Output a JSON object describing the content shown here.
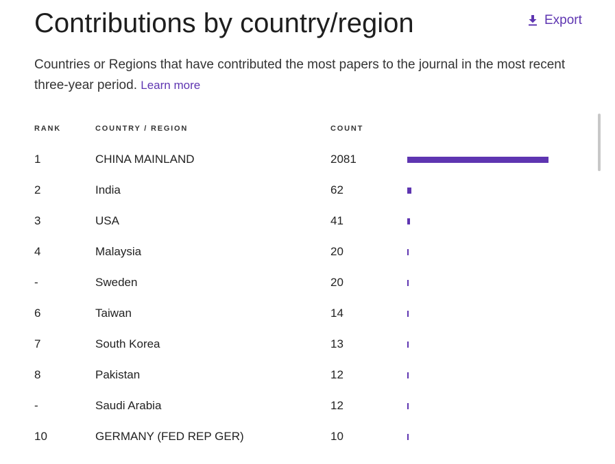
{
  "header": {
    "title": "Contributions by country/region",
    "export_label": "Export",
    "description": "Countries or Regions that have contributed the most papers to the journal in the most recent three-year period.",
    "learn_more": "Learn more"
  },
  "table": {
    "columns": {
      "rank": "RANK",
      "country": "COUNTRY / REGION",
      "count": "COUNT"
    },
    "max_count": 2081,
    "rows": [
      {
        "rank": "1",
        "country": "CHINA MAINLAND",
        "count": "2081",
        "value": 2081
      },
      {
        "rank": "2",
        "country": "India",
        "count": "62",
        "value": 62
      },
      {
        "rank": "3",
        "country": "USA",
        "count": "41",
        "value": 41
      },
      {
        "rank": "4",
        "country": "Malaysia",
        "count": "20",
        "value": 20
      },
      {
        "rank": "-",
        "country": "Sweden",
        "count": "20",
        "value": 20
      },
      {
        "rank": "6",
        "country": "Taiwan",
        "count": "14",
        "value": 14
      },
      {
        "rank": "7",
        "country": "South Korea",
        "count": "13",
        "value": 13
      },
      {
        "rank": "8",
        "country": "Pakistan",
        "count": "12",
        "value": 12
      },
      {
        "rank": "-",
        "country": "Saudi Arabia",
        "count": "12",
        "value": 12
      },
      {
        "rank": "10",
        "country": "GERMANY (FED REP GER)",
        "count": "10",
        "value": 10
      }
    ]
  },
  "colors": {
    "accent": "#5e35b1",
    "text": "#222222",
    "scrollbar": "#c8c8c8"
  },
  "icons": {
    "export": "download-icon"
  }
}
